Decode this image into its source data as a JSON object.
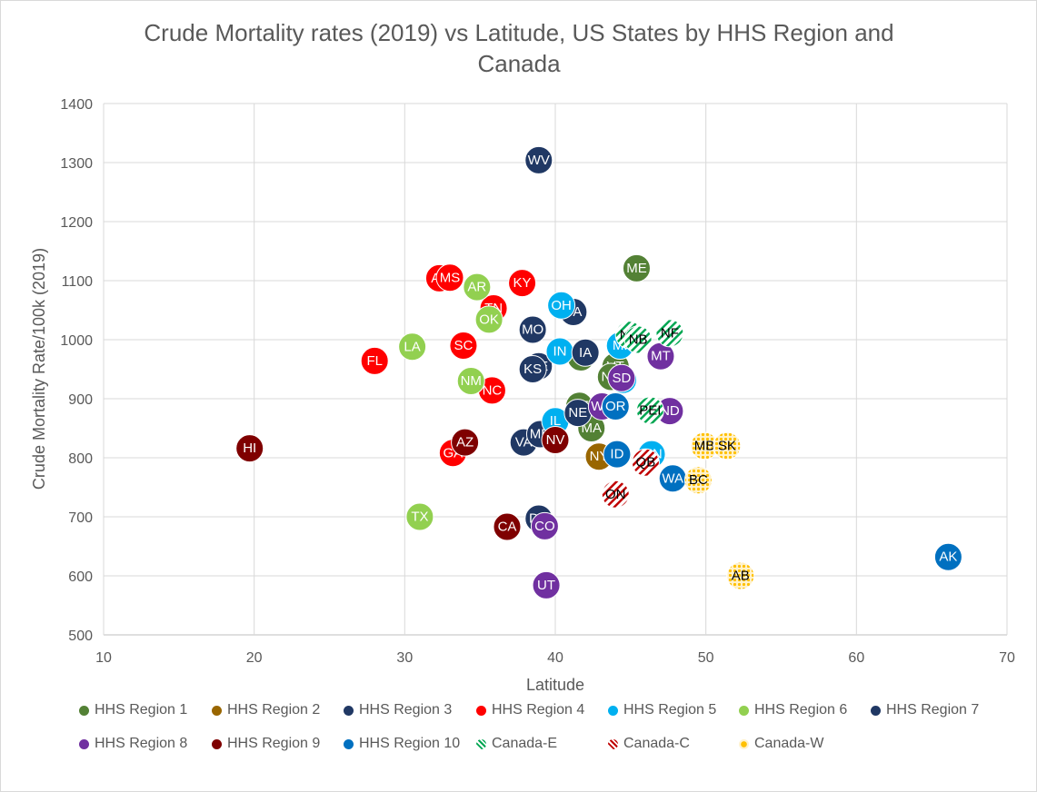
{
  "chart_data": {
    "type": "scatter",
    "title": "Crude Mortality rates (2019) vs Latitude, US States by HHS Region and Canada",
    "title_lines": [
      "Crude Mortality rates (2019) vs Latitude, US States by HHS Region and",
      "Canada"
    ],
    "xlabel": "Latitude",
    "ylabel": "Crude Mortality Rate/100k (2019)",
    "xlim": [
      10,
      70
    ],
    "ylim": [
      500,
      1400
    ],
    "x_ticks": [
      "10",
      "20",
      "30",
      "40",
      "50",
      "60",
      "70"
    ],
    "y_ticks": [
      "500",
      "600",
      "700",
      "800",
      "900",
      "1000",
      "1100",
      "1200",
      "1300",
      "1400"
    ],
    "grid": true,
    "legend_position": "bottom",
    "series": [
      {
        "name": "HHS Region 1",
        "color": "#538135",
        "pattern": "solid",
        "points": [
          {
            "label": "ME",
            "x": 45.4,
            "y": 1121
          },
          {
            "label": "VT",
            "x": 44.0,
            "y": 955
          },
          {
            "label": "NH",
            "x": 43.7,
            "y": 937
          },
          {
            "label": "CT",
            "x": 41.6,
            "y": 888
          },
          {
            "label": "RI",
            "x": 41.7,
            "y": 970
          },
          {
            "label": "MA",
            "x": 42.4,
            "y": 850
          }
        ]
      },
      {
        "name": "HHS Region 2",
        "color": "#996600",
        "pattern": "solid",
        "points": [
          {
            "label": "NY",
            "x": 42.9,
            "y": 802
          }
        ]
      },
      {
        "name": "HHS Region 3",
        "color": "#203864",
        "pattern": "solid",
        "points": [
          {
            "label": "WV",
            "x": 38.9,
            "y": 1304
          },
          {
            "label": "PA",
            "x": 41.2,
            "y": 1047
          },
          {
            "label": "DE",
            "x": 38.9,
            "y": 955
          },
          {
            "label": "VA",
            "x": 37.9,
            "y": 826
          },
          {
            "label": "MD",
            "x": 39.0,
            "y": 840
          },
          {
            "label": "DC",
            "x": 38.9,
            "y": 697
          }
        ]
      },
      {
        "name": "HHS Region 4",
        "color": "#ff0000",
        "pattern": "solid",
        "points": [
          {
            "label": "AL",
            "x": 32.3,
            "y": 1104
          },
          {
            "label": "MS",
            "x": 33.0,
            "y": 1105
          },
          {
            "label": "KY",
            "x": 37.8,
            "y": 1096
          },
          {
            "label": "TN",
            "x": 35.9,
            "y": 1053
          },
          {
            "label": "SC",
            "x": 33.9,
            "y": 990
          },
          {
            "label": "FL",
            "x": 28.0,
            "y": 964
          },
          {
            "label": "NC",
            "x": 35.8,
            "y": 914
          },
          {
            "label": "GA",
            "x": 33.2,
            "y": 808
          }
        ]
      },
      {
        "name": "HHS Region 5",
        "color": "#00b0f0",
        "pattern": "solid",
        "points": [
          {
            "label": "OH",
            "x": 40.4,
            "y": 1058
          },
          {
            "label": "MI",
            "x": 44.3,
            "y": 990
          },
          {
            "label": "IN",
            "x": 40.3,
            "y": 980
          },
          {
            "label": "WI",
            "x": 44.5,
            "y": 932
          },
          {
            "label": "IL",
            "x": 40.0,
            "y": 862
          },
          {
            "label": "MN",
            "x": 46.4,
            "y": 806
          }
        ]
      },
      {
        "name": "HHS Region 6",
        "color": "#92d050",
        "pattern": "solid",
        "points": [
          {
            "label": "AR",
            "x": 34.8,
            "y": 1089
          },
          {
            "label": "OK",
            "x": 35.6,
            "y": 1034
          },
          {
            "label": "LA",
            "x": 30.5,
            "y": 988
          },
          {
            "label": "NM",
            "x": 34.4,
            "y": 930
          },
          {
            "label": "TX",
            "x": 31.0,
            "y": 700
          }
        ]
      },
      {
        "name": "HHS Region 7",
        "color": "#203864",
        "pattern": "solid",
        "points": [
          {
            "label": "MO",
            "x": 38.5,
            "y": 1017
          },
          {
            "label": "IA",
            "x": 42.0,
            "y": 978
          },
          {
            "label": "KS",
            "x": 38.5,
            "y": 950
          },
          {
            "label": "NE",
            "x": 41.5,
            "y": 876
          }
        ]
      },
      {
        "name": "HHS Region 8",
        "color": "#7030a0",
        "pattern": "solid",
        "points": [
          {
            "label": "MT",
            "x": 47.0,
            "y": 972
          },
          {
            "label": "SD",
            "x": 44.4,
            "y": 935
          },
          {
            "label": "ND",
            "x": 47.6,
            "y": 879
          },
          {
            "label": "WY",
            "x": 43.1,
            "y": 887
          },
          {
            "label": "CO",
            "x": 39.3,
            "y": 684
          },
          {
            "label": "UT",
            "x": 39.4,
            "y": 584
          }
        ]
      },
      {
        "name": "HHS Region 9",
        "color": "#7f0000",
        "pattern": "solid",
        "points": [
          {
            "label": "HI",
            "x": 19.7,
            "y": 816
          },
          {
            "label": "AZ",
            "x": 34.0,
            "y": 826
          },
          {
            "label": "NV",
            "x": 40.0,
            "y": 830
          },
          {
            "label": "CA",
            "x": 36.8,
            "y": 683
          }
        ]
      },
      {
        "name": "HHS Region 10",
        "color": "#0070c0",
        "pattern": "solid",
        "points": [
          {
            "label": "OR",
            "x": 44.0,
            "y": 887
          },
          {
            "label": "ID",
            "x": 44.1,
            "y": 806
          },
          {
            "label": "WA",
            "x": 47.8,
            "y": 765
          },
          {
            "label": "AK",
            "x": 66.1,
            "y": 632
          }
        ]
      },
      {
        "name": "Canada-E",
        "color": "#00a651",
        "pattern": "green-hatch",
        "points": [
          {
            "label": "NS",
            "x": 44.9,
            "y": 1008
          },
          {
            "label": "NB",
            "x": 45.5,
            "y": 1000
          },
          {
            "label": "NF",
            "x": 47.6,
            "y": 1011
          },
          {
            "label": "PEI",
            "x": 46.3,
            "y": 880
          }
        ]
      },
      {
        "name": "Canada-C",
        "color": "#c00000",
        "pattern": "red-hatch",
        "points": [
          {
            "label": "QB",
            "x": 46.0,
            "y": 792
          },
          {
            "label": "ON",
            "x": 44.0,
            "y": 738
          }
        ]
      },
      {
        "name": "Canada-W",
        "color": "#ffd966",
        "pattern": "yellow-dots",
        "points": [
          {
            "label": "MB",
            "x": 49.9,
            "y": 820
          },
          {
            "label": "SK",
            "x": 51.4,
            "y": 820
          },
          {
            "label": "BC",
            "x": 49.5,
            "y": 762
          },
          {
            "label": "AB",
            "x": 52.3,
            "y": 600
          }
        ]
      }
    ]
  }
}
